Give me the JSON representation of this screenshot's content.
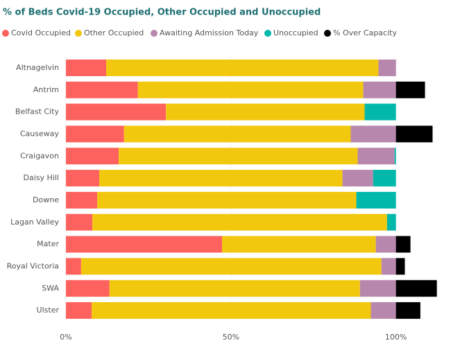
{
  "chart_data": {
    "type": "stacked-barh",
    "title": "% of Beds Covid-19 Occupied, Other Occupied and Unoccupied",
    "categories": [
      "Altnagelvin",
      "Antrim",
      "Belfast City",
      "Causeway",
      "Craigavon",
      "Daisy Hill",
      "Downe",
      "Lagan Valley",
      "Mater",
      "Royal Victoria",
      "SWA",
      "Ulster"
    ],
    "series": [
      {
        "name": "Covid Occupied",
        "color": "#fd625e",
        "values": [
          12.2,
          21.8,
          30.3,
          17.6,
          16.0,
          10.1,
          9.5,
          8.0,
          47.3,
          4.6,
          13.2,
          7.8
        ]
      },
      {
        "name": "Other Occupied",
        "color": "#f2c80f",
        "values": [
          82.5,
          68.3,
          60.2,
          68.7,
          72.4,
          73.7,
          78.5,
          89.3,
          46.6,
          91.0,
          75.9,
          84.6
        ]
      },
      {
        "name": "Awaiting Admission Today",
        "color": "#b887ad",
        "values": [
          5.3,
          9.9,
          0,
          13.7,
          11.2,
          9.3,
          0,
          0,
          6.1,
          4.4,
          10.9,
          7.6
        ]
      },
      {
        "name": "Unoccupied",
        "color": "#01b8aa",
        "values": [
          0,
          0,
          9.5,
          0,
          0.4,
          6.9,
          12.0,
          2.7,
          0,
          0,
          0,
          0
        ]
      },
      {
        "name": "% Over Capacity",
        "color": "#000000",
        "values": [
          0,
          8.8,
          0,
          11.1,
          0,
          0,
          0,
          0,
          4.4,
          2.7,
          12.4,
          7.4
        ]
      }
    ],
    "xlim": [
      0,
      115
    ],
    "xticks": [
      {
        "value": 0,
        "label": "0%"
      },
      {
        "value": 50,
        "label": "50%"
      },
      {
        "value": 100,
        "label": "100%"
      }
    ],
    "grid": true
  }
}
